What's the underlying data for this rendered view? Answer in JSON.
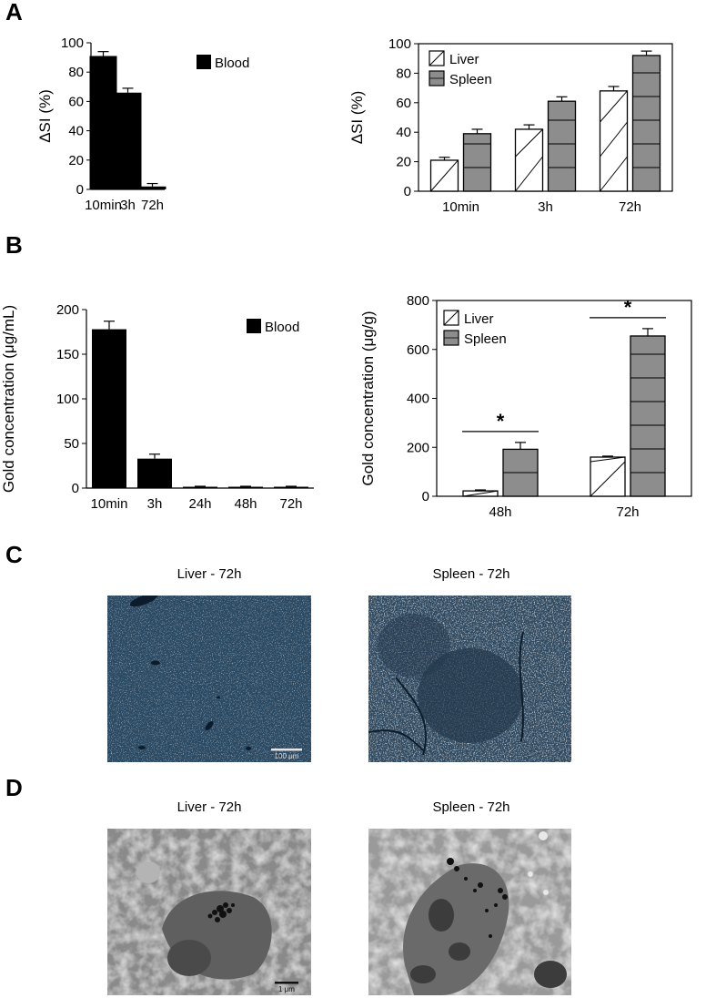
{
  "panels": {
    "A": "A",
    "B": "B",
    "C": "C",
    "D": "D"
  },
  "chart_data": [
    {
      "id": "a-blood",
      "type": "bar",
      "ylabel": "ΔSI (%)",
      "ylim": [
        0,
        100
      ],
      "yticks": [
        0,
        20,
        40,
        60,
        80,
        100
      ],
      "categories": [
        "10min",
        "3h",
        "72h"
      ],
      "series": [
        {
          "name": "Blood",
          "values": [
            91,
            66,
            2
          ],
          "errors": [
            3,
            3,
            2
          ],
          "pattern": "solid"
        }
      ],
      "legend": "top-right"
    },
    {
      "id": "a-organs",
      "type": "bar",
      "ylabel": "ΔSI (%)",
      "ylim": [
        0,
        100
      ],
      "yticks": [
        0,
        20,
        40,
        60,
        80,
        100
      ],
      "categories": [
        "10min",
        "3h",
        "72h"
      ],
      "series": [
        {
          "name": "Liver",
          "values": [
            21,
            42,
            68
          ],
          "errors": [
            2,
            3,
            3
          ],
          "pattern": "diagonal"
        },
        {
          "name": "Spleen",
          "values": [
            39,
            61,
            92
          ],
          "errors": [
            3,
            3,
            3
          ],
          "pattern": "horizontal"
        }
      ],
      "legend": "top-left"
    },
    {
      "id": "b-blood",
      "type": "bar",
      "ylabel": "Gold concentration (μg/mL)",
      "ylim": [
        0,
        200
      ],
      "yticks": [
        0,
        50,
        100,
        150,
        200
      ],
      "categories": [
        "10min",
        "3h",
        "24h",
        "48h",
        "72h"
      ],
      "series": [
        {
          "name": "Blood",
          "values": [
            178,
            33,
            1.5,
            1.5,
            1.5
          ],
          "errors": [
            9,
            5,
            0.5,
            0.5,
            0.5
          ],
          "pattern": "solid"
        }
      ],
      "legend": "top-right"
    },
    {
      "id": "b-organs",
      "type": "bar",
      "ylabel": "Gold concentration (μg/g)",
      "ylim": [
        0,
        800
      ],
      "yticks": [
        0,
        200,
        400,
        600,
        800
      ],
      "categories": [
        "48h",
        "72h"
      ],
      "series": [
        {
          "name": "Liver",
          "values": [
            22,
            160
          ],
          "errors": [
            4,
            4
          ],
          "pattern": "diagonal"
        },
        {
          "name": "Spleen",
          "values": [
            192,
            655
          ],
          "errors": [
            28,
            30
          ],
          "pattern": "horizontal"
        }
      ],
      "significance": [
        "*",
        "*"
      ],
      "legend": "top-left"
    }
  ],
  "images": {
    "c_liver_title": "Liver - 72h",
    "c_spleen_title": "Spleen - 72h",
    "c_scale": "100 μm",
    "d_liver_title": "Liver - 72h",
    "d_spleen_title": "Spleen - 72h",
    "d_scale": "1 μm"
  }
}
